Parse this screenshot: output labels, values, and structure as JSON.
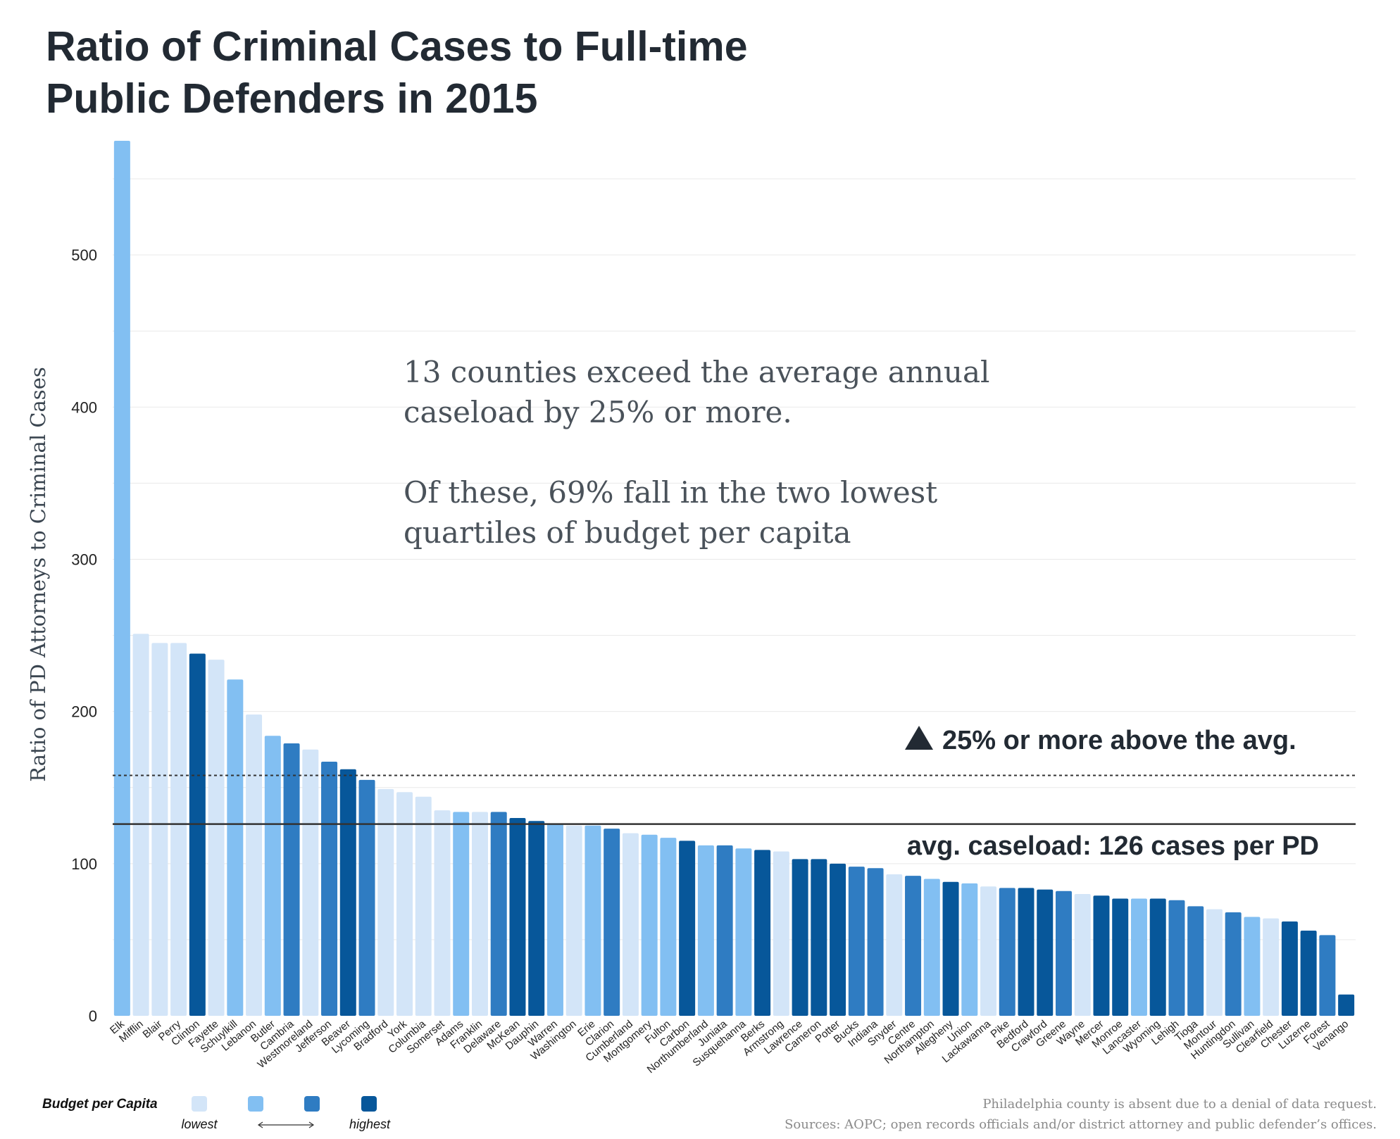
{
  "chart_data": {
    "type": "bar",
    "title_lines": [
      "Ratio of Criminal Cases to Full-time",
      "Public Defenders in 2015"
    ],
    "xlabel": "",
    "ylabel": "Ratio of PD Attorneys to Criminal Cases",
    "ylim": [
      0,
      575
    ],
    "yticks": [
      0,
      100,
      200,
      300,
      400,
      500
    ],
    "grid": "horizontal",
    "categories": [
      "Elk",
      "Mifflin",
      "Blair",
      "Perry",
      "Clinton",
      "Fayette",
      "Schuylkill",
      "Lebanon",
      "Butler",
      "Cambria",
      "Westmoreland",
      "Jefferson",
      "Beaver",
      "Lycoming",
      "Bradford",
      "York",
      "Columbia",
      "Somerset",
      "Adams",
      "Franklin",
      "Delaware",
      "McKean",
      "Dauphin",
      "Warren",
      "Washington",
      "Erie",
      "Clarion",
      "Cumberland",
      "Montgomery",
      "Fulton",
      "Carbon",
      "Northumberland",
      "Juniata",
      "Susquehanna",
      "Berks",
      "Armstrong",
      "Lawrence",
      "Cameron",
      "Potter",
      "Bucks",
      "Indiana",
      "Snyder",
      "Centre",
      "Northampton",
      "Allegheny",
      "Union",
      "Lackawanna",
      "Pike",
      "Bedford",
      "Crawford",
      "Greene",
      "Wayne",
      "Mercer",
      "Monroe",
      "Lancaster",
      "Wyoming",
      "Lehigh",
      "Tioga",
      "Montour",
      "Huntingdon",
      "Sullivan",
      "Clearfield",
      "Chester",
      "Luzerne",
      "Forest",
      "Venango"
    ],
    "values": [
      575,
      251,
      245,
      245,
      238,
      234,
      221,
      198,
      184,
      179,
      175,
      167,
      162,
      155,
      149,
      147,
      144,
      135,
      134,
      134,
      134,
      130,
      128,
      126,
      125,
      125,
      123,
      120,
      119,
      117,
      115,
      112,
      112,
      110,
      109,
      108,
      103,
      103,
      100,
      98,
      97,
      93,
      92,
      90,
      88,
      87,
      85,
      84,
      84,
      83,
      82,
      80,
      79,
      77,
      77,
      77,
      76,
      72,
      70,
      68,
      65,
      64,
      62,
      56,
      53,
      14
    ],
    "budget_quartile": [
      2,
      1,
      1,
      1,
      4,
      1,
      2,
      1,
      2,
      3,
      1,
      3,
      4,
      3,
      1,
      1,
      1,
      1,
      2,
      1,
      3,
      4,
      4,
      2,
      1,
      2,
      3,
      1,
      2,
      2,
      4,
      2,
      3,
      2,
      4,
      1,
      4,
      4,
      4,
      3,
      3,
      1,
      3,
      2,
      4,
      2,
      1,
      3,
      4,
      4,
      3,
      1,
      4,
      4,
      2,
      4,
      3,
      3,
      1,
      3,
      2,
      1,
      4,
      4,
      3,
      4
    ],
    "average": 126,
    "threshold": 158,
    "annotations": {
      "note": [
        "13 counties exceed the average annual",
        "caseload by 25% or more.",
        "Of these, 69% fall in the two lowest",
        "quartiles of budget per capita"
      ],
      "threshold_label": "25% or more above the avg.",
      "average_label": "avg. caseload: 126 cases per PD"
    },
    "legend": {
      "title": "Budget per Capita",
      "low_label": "lowest",
      "high_label": "highest",
      "colors": [
        "#d3e5f8",
        "#82bff2",
        "#2f7cc2",
        "#07579a"
      ]
    },
    "footnotes": [
      "Philadelphia county is absent due to a denial of data request.",
      "Sources: AOPC; open records officials and/or district attorney and public defender’s offices."
    ]
  }
}
